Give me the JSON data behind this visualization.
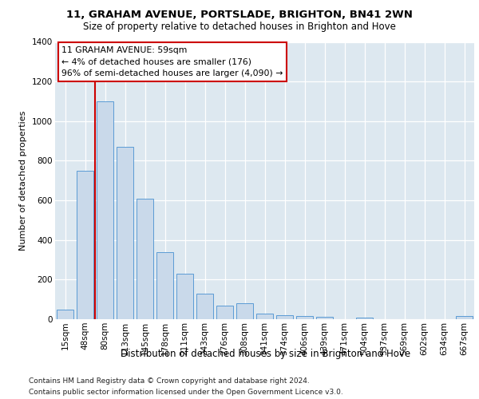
{
  "title": "11, GRAHAM AVENUE, PORTSLADE, BRIGHTON, BN41 2WN",
  "subtitle": "Size of property relative to detached houses in Brighton and Hove",
  "xlabel": "Distribution of detached houses by size in Brighton and Hove",
  "ylabel": "Number of detached properties",
  "footer1": "Contains HM Land Registry data © Crown copyright and database right 2024.",
  "footer2": "Contains public sector information licensed under the Open Government Licence v3.0.",
  "categories": [
    "15sqm",
    "48sqm",
    "80sqm",
    "113sqm",
    "145sqm",
    "178sqm",
    "211sqm",
    "243sqm",
    "276sqm",
    "308sqm",
    "341sqm",
    "374sqm",
    "406sqm",
    "439sqm",
    "471sqm",
    "504sqm",
    "537sqm",
    "569sqm",
    "602sqm",
    "634sqm",
    "667sqm"
  ],
  "values": [
    50,
    750,
    1100,
    870,
    610,
    340,
    228,
    130,
    68,
    80,
    30,
    22,
    17,
    12,
    0,
    7,
    0,
    0,
    0,
    0,
    15
  ],
  "bar_color": "#c9d9ea",
  "bar_edge_color": "#5b9bd5",
  "vline_color": "#cc0000",
  "vline_x": 1.5,
  "annotation_text": "11 GRAHAM AVENUE: 59sqm\n← 4% of detached houses are smaller (176)\n96% of semi-detached houses are larger (4,090) →",
  "annotation_box_color": "#ffffff",
  "annotation_box_edge": "#cc0000",
  "ylim": [
    0,
    1400
  ],
  "fig_bg_color": "#ffffff",
  "plot_bg_color": "#dde8f0",
  "grid_color": "#ffffff",
  "title_fontsize": 9.5,
  "subtitle_fontsize": 8.5,
  "ylabel_fontsize": 8,
  "xlabel_fontsize": 8.5,
  "tick_fontsize": 7.5,
  "footer_fontsize": 6.5
}
